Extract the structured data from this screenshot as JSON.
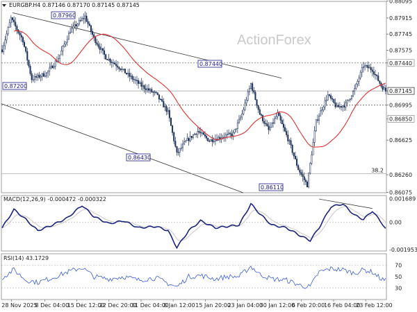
{
  "header": {
    "symbol_line": "EURGBP.H4  0.87146 0.87170 0.87145 0.87145",
    "collapse_icon": "triangle-down-icon"
  },
  "watermark": "ActionForex",
  "colors": {
    "candle": "#1c2f5a",
    "sma": "#e03030",
    "macd": "#1a237e",
    "signal": "#c8c8c8",
    "rsi": "#3a5bd9",
    "label_box": "#1a1a8c",
    "channel": "#333333",
    "dotted": "#555555"
  },
  "chart_data": [
    {
      "type": "candlestick",
      "name": "main",
      "ylim": [
        0.8607,
        0.8809
      ],
      "y_ticks": [
        "0.88095",
        "0.87915",
        "0.87745",
        "0.87575",
        "0.87440",
        "0.87145",
        "0.86995",
        "0.86850",
        "0.86625",
        "0.86260",
        "0.86075"
      ],
      "x_tick_labels": [
        "28 Nov 2025",
        "8 Dec 04:00",
        "15 Dec 12:00",
        "22 Dec 20:00",
        "31 Dec 04:00",
        "8 Jan 12:00",
        "15 Jan 20:00",
        "23 Jan 04:00",
        "30 Jan 12:00",
        "6 Feb 20:00",
        "16 Feb 04:00",
        "23 Feb 12:00"
      ],
      "bars": 260,
      "waypoints": [
        [
          0,
          0.8758
        ],
        [
          6,
          0.8791
        ],
        [
          14,
          0.8768
        ],
        [
          20,
          0.8727
        ],
        [
          30,
          0.8733
        ],
        [
          38,
          0.8749
        ],
        [
          46,
          0.8778
        ],
        [
          56,
          0.8793
        ],
        [
          62,
          0.877
        ],
        [
          70,
          0.875
        ],
        [
          78,
          0.8741
        ],
        [
          86,
          0.873
        ],
        [
          94,
          0.872
        ],
        [
          104,
          0.8711
        ],
        [
          112,
          0.8692
        ],
        [
          118,
          0.8648
        ],
        [
          124,
          0.8661
        ],
        [
          132,
          0.8672
        ],
        [
          140,
          0.8662
        ],
        [
          148,
          0.8666
        ],
        [
          156,
          0.8669
        ],
        [
          162,
          0.869
        ],
        [
          168,
          0.8722
        ],
        [
          174,
          0.869
        ],
        [
          180,
          0.8673
        ],
        [
          186,
          0.869
        ],
        [
          194,
          0.866
        ],
        [
          200,
          0.8632
        ],
        [
          206,
          0.8615
        ],
        [
          212,
          0.8682
        ],
        [
          220,
          0.871
        ],
        [
          226,
          0.8697
        ],
        [
          232,
          0.87
        ],
        [
          238,
          0.8716
        ],
        [
          244,
          0.8741
        ],
        [
          250,
          0.8737
        ],
        [
          256,
          0.872
        ],
        [
          259,
          0.87145
        ]
      ],
      "annotations": [
        {
          "label": "0.87960"
        },
        {
          "label": "0.87440"
        },
        {
          "label": "0.87200"
        },
        {
          "label": "0.86430"
        },
        {
          "label": "0.86110"
        }
      ],
      "horizontal_lines": [
        {
          "value": 0.8744,
          "style": "dotted"
        },
        {
          "value": 0.86995,
          "style": "dotted"
        },
        {
          "value": 0.87145,
          "style": "solid-gray"
        },
        {
          "value": 0.8627,
          "style": "solid-gray",
          "label": "38.2"
        }
      ],
      "current_price": "0.87145",
      "highlight_levels": [
        "0.87440",
        "0.86850"
      ]
    },
    {
      "type": "line",
      "name": "macd",
      "title": "MACD(12,26,9) -0.000472 -0.000322",
      "y_ticks": [
        "0.001689",
        "0.00",
        "-0.001953"
      ],
      "ylim": [
        -0.00205,
        0.0019
      ],
      "waypoints": [
        [
          0,
          -0.0004
        ],
        [
          8,
          0.0009
        ],
        [
          16,
          0.0002
        ],
        [
          24,
          -0.0006
        ],
        [
          34,
          -0.0002
        ],
        [
          44,
          0.0003
        ],
        [
          54,
          0.0012
        ],
        [
          62,
          0.0004
        ],
        [
          72,
          -0.0001
        ],
        [
          82,
          0.0001
        ],
        [
          92,
          -0.0004
        ],
        [
          104,
          -0.0003
        ],
        [
          112,
          -0.0006
        ],
        [
          118,
          -0.0018
        ],
        [
          126,
          -0.0006
        ],
        [
          134,
          0.0001
        ],
        [
          144,
          -0.0004
        ],
        [
          152,
          -0.0003
        ],
        [
          160,
          -0.0002
        ],
        [
          168,
          0.0013
        ],
        [
          174,
          0.0006
        ],
        [
          182,
          -0.0002
        ],
        [
          192,
          -0.0004
        ],
        [
          202,
          -0.001
        ],
        [
          208,
          -0.0013
        ],
        [
          214,
          -0.0004
        ],
        [
          222,
          0.0011
        ],
        [
          230,
          0.0013
        ],
        [
          238,
          0.0005
        ],
        [
          244,
          0.0002
        ],
        [
          250,
          0.0008
        ],
        [
          256,
          0.0
        ],
        [
          259,
          -0.00047
        ]
      ]
    },
    {
      "type": "line",
      "name": "rsi",
      "title": "RSI(14) 43.1729",
      "y_ticks": [
        "70",
        "50",
        "30"
      ],
      "ylim": [
        10,
        90
      ],
      "waypoints": [
        [
          0,
          48
        ],
        [
          8,
          62
        ],
        [
          16,
          44
        ],
        [
          24,
          40
        ],
        [
          34,
          48
        ],
        [
          44,
          58
        ],
        [
          54,
          66
        ],
        [
          62,
          50
        ],
        [
          72,
          46
        ],
        [
          82,
          50
        ],
        [
          92,
          44
        ],
        [
          104,
          48
        ],
        [
          112,
          38
        ],
        [
          118,
          32
        ],
        [
          126,
          50
        ],
        [
          134,
          52
        ],
        [
          144,
          46
        ],
        [
          152,
          50
        ],
        [
          160,
          50
        ],
        [
          168,
          68
        ],
        [
          174,
          54
        ],
        [
          182,
          46
        ],
        [
          192,
          44
        ],
        [
          202,
          34
        ],
        [
          208,
          32
        ],
        [
          214,
          58
        ],
        [
          222,
          64
        ],
        [
          230,
          62
        ],
        [
          238,
          56
        ],
        [
          244,
          62
        ],
        [
          250,
          58
        ],
        [
          256,
          46
        ],
        [
          259,
          43
        ]
      ]
    }
  ]
}
